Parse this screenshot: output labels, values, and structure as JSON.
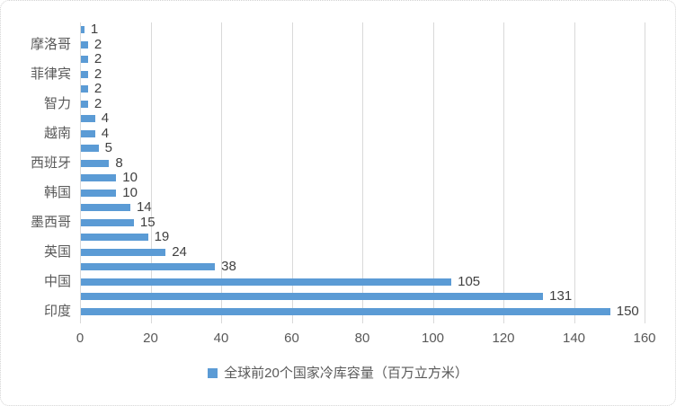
{
  "chart_data": {
    "type": "bar",
    "orientation": "horizontal",
    "title": "",
    "legend": "全球前20个国家冷库容量（百万立方米）",
    "legend_position": "bottom",
    "grid": true,
    "xlim": [
      0,
      160
    ],
    "x_ticks": [
      0,
      20,
      40,
      60,
      80,
      100,
      120,
      140,
      160
    ],
    "categories": [
      "",
      "摩洛哥",
      "",
      "菲律宾",
      "",
      "智力",
      "",
      "越南",
      "",
      "西班牙",
      "",
      "韩国",
      "",
      "墨西哥",
      "",
      "英国",
      "",
      "中国",
      "",
      "印度"
    ],
    "values": [
      1,
      2,
      2,
      2,
      2,
      2,
      4,
      4,
      5,
      8,
      10,
      10,
      14,
      15,
      19,
      24,
      38,
      105,
      131,
      150
    ],
    "data_labels": true,
    "colors": {
      "bar": "#5B9BD5",
      "gridline": "#D9D9D9",
      "axis_text": "#595959",
      "value_text": "#404040",
      "border": "#D2D2D2"
    }
  }
}
